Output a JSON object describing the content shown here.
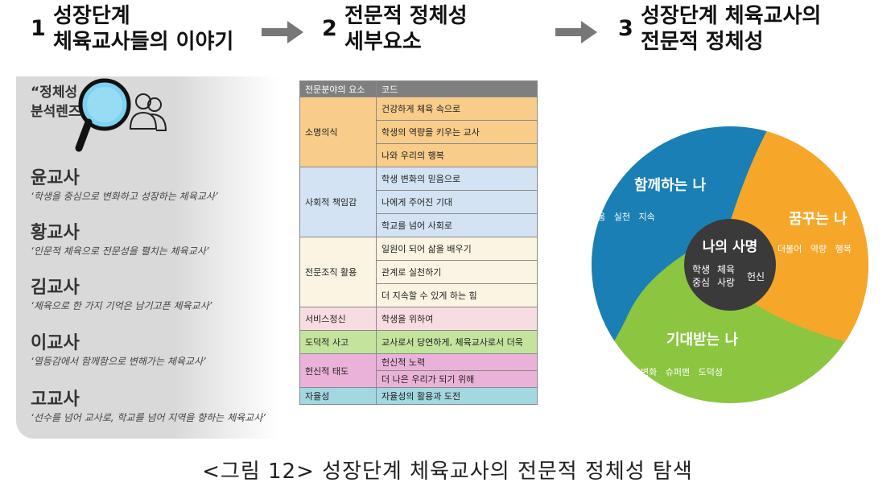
{
  "steps": [
    {
      "number": "1",
      "title_line1": "성장단계",
      "title_line2": "체육교사들의 이야기"
    },
    {
      "number": "2",
      "title_line1": "전문적 정체성",
      "title_line2": "세부요소"
    },
    {
      "number": "3",
      "title_line1": "성장단계 체육교사의",
      "title_line2": "전문적 정체성"
    }
  ],
  "lens": {
    "title_line1": "“정체성",
    "title_line2": "분석렌즈”",
    "teachers": [
      {
        "name": "윤교사",
        "desc": "‘학생을 중심으로 변화하고 성장하는 체육교사’"
      },
      {
        "name": "황교사",
        "desc": "‘인문적 체육으로 전문성을 펼치는 체육교사’"
      },
      {
        "name": "김교사",
        "desc": "‘체육으로 한 가지 기억은 남기고픈 체육교사’"
      },
      {
        "name": "이교사",
        "desc": "‘열등감에서 함께함으로 변해가는 체육교사’"
      },
      {
        "name": "고교사",
        "desc": "‘선수를 넘어 교사로, 학교를 넘어 지역을 향하는 체육교사’"
      }
    ]
  },
  "table": {
    "headers": [
      "전문분야의 요소",
      "코드"
    ],
    "groups": [
      {
        "element": "소명의식",
        "color": "orange",
        "codes": [
          "건강하게 체육 속으로",
          "학생의 역량을 키우는 교사",
          "나와 우리의 행복"
        ]
      },
      {
        "element": "사회적 책임감",
        "color": "blue",
        "codes": [
          "학생 변화의 믿음으로",
          "나에게 주어진 기대",
          "학교를 넘어 사회로"
        ]
      },
      {
        "element": "전문조직 활용",
        "color": "cream",
        "codes": [
          "일원이 되어 삶을 배우기",
          "관계로 실천하기",
          "더 지속할 수 있게 하는 힘"
        ]
      },
      {
        "element": "서비스정신",
        "color": "pink",
        "codes": [
          "학생을 위하여"
        ]
      },
      {
        "element": "도덕적 사고",
        "color": "green",
        "codes": [
          "교사로서 당연하게, 체육교사로서 더욱"
        ]
      },
      {
        "element": "헌신적 태도",
        "color": "magenta",
        "codes": [
          "헌신적 노력",
          "더 나은 우리가 되기 위해"
        ]
      },
      {
        "element": "자율성",
        "color": "teal",
        "codes": [
          "자율성의 활용과 도전"
        ]
      }
    ]
  },
  "diagram": {
    "colors": {
      "blue": "#1a7fb4",
      "orange": "#f6a72a",
      "green": "#8cc540",
      "center": "#3a3a3a"
    },
    "blue": {
      "title": "함께하는 나",
      "words": "배움   실천   지속"
    },
    "orange": {
      "title": "꿈꾸는 나",
      "words": "더불어   역량   행복"
    },
    "green": {
      "title": "기대받는 나",
      "words": "변화   슈퍼맨   도덕성"
    },
    "center": {
      "title": "나의 사명",
      "w1": "학생",
      "w2": "체육",
      "w3": "중심",
      "w4": "사랑",
      "w5": "헌신"
    }
  },
  "caption": "<그림 12> 성장단계 체육교사의 전문적 정체성 탐색"
}
